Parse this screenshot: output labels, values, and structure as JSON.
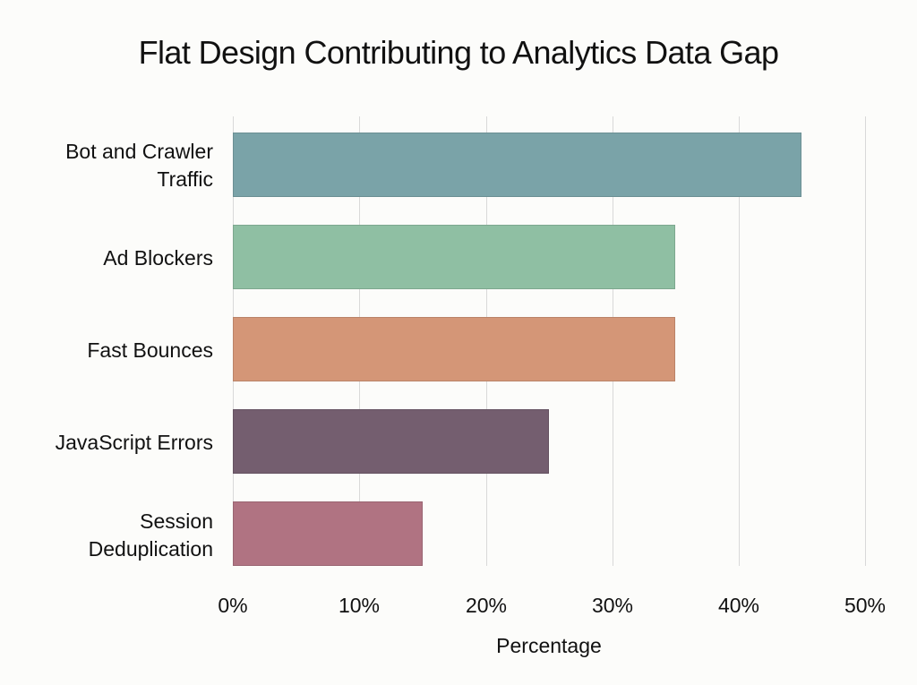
{
  "chart_data": {
    "type": "bar",
    "orientation": "horizontal",
    "title": "Flat Design Contributing to Analytics Data Gap",
    "xlabel": "Percentage",
    "ylabel": "",
    "xlim": [
      0,
      50
    ],
    "x_ticks": [
      "0%",
      "10%",
      "20%",
      "30%",
      "40%",
      "50%"
    ],
    "grid": true,
    "legend": null,
    "categories": [
      "Bot and Crawler Traffic",
      "Ad Blockers",
      "Fast Bounces",
      "JavaScript Errors",
      "Session Deduplication"
    ],
    "values": [
      45,
      35,
      35,
      25,
      15
    ],
    "colors": [
      "#7aa3a8",
      "#8fbfa3",
      "#d49677",
      "#745e6f",
      "#b07382"
    ]
  },
  "labels": {
    "cat0_line1": "Bot and Crawler",
    "cat0_line2": "Traffic",
    "cat1": "Ad Blockers",
    "cat2": "Fast Bounces",
    "cat3": "JavaScript Errors",
    "cat4_line1": "Session",
    "cat4_line2": "Deduplication"
  }
}
